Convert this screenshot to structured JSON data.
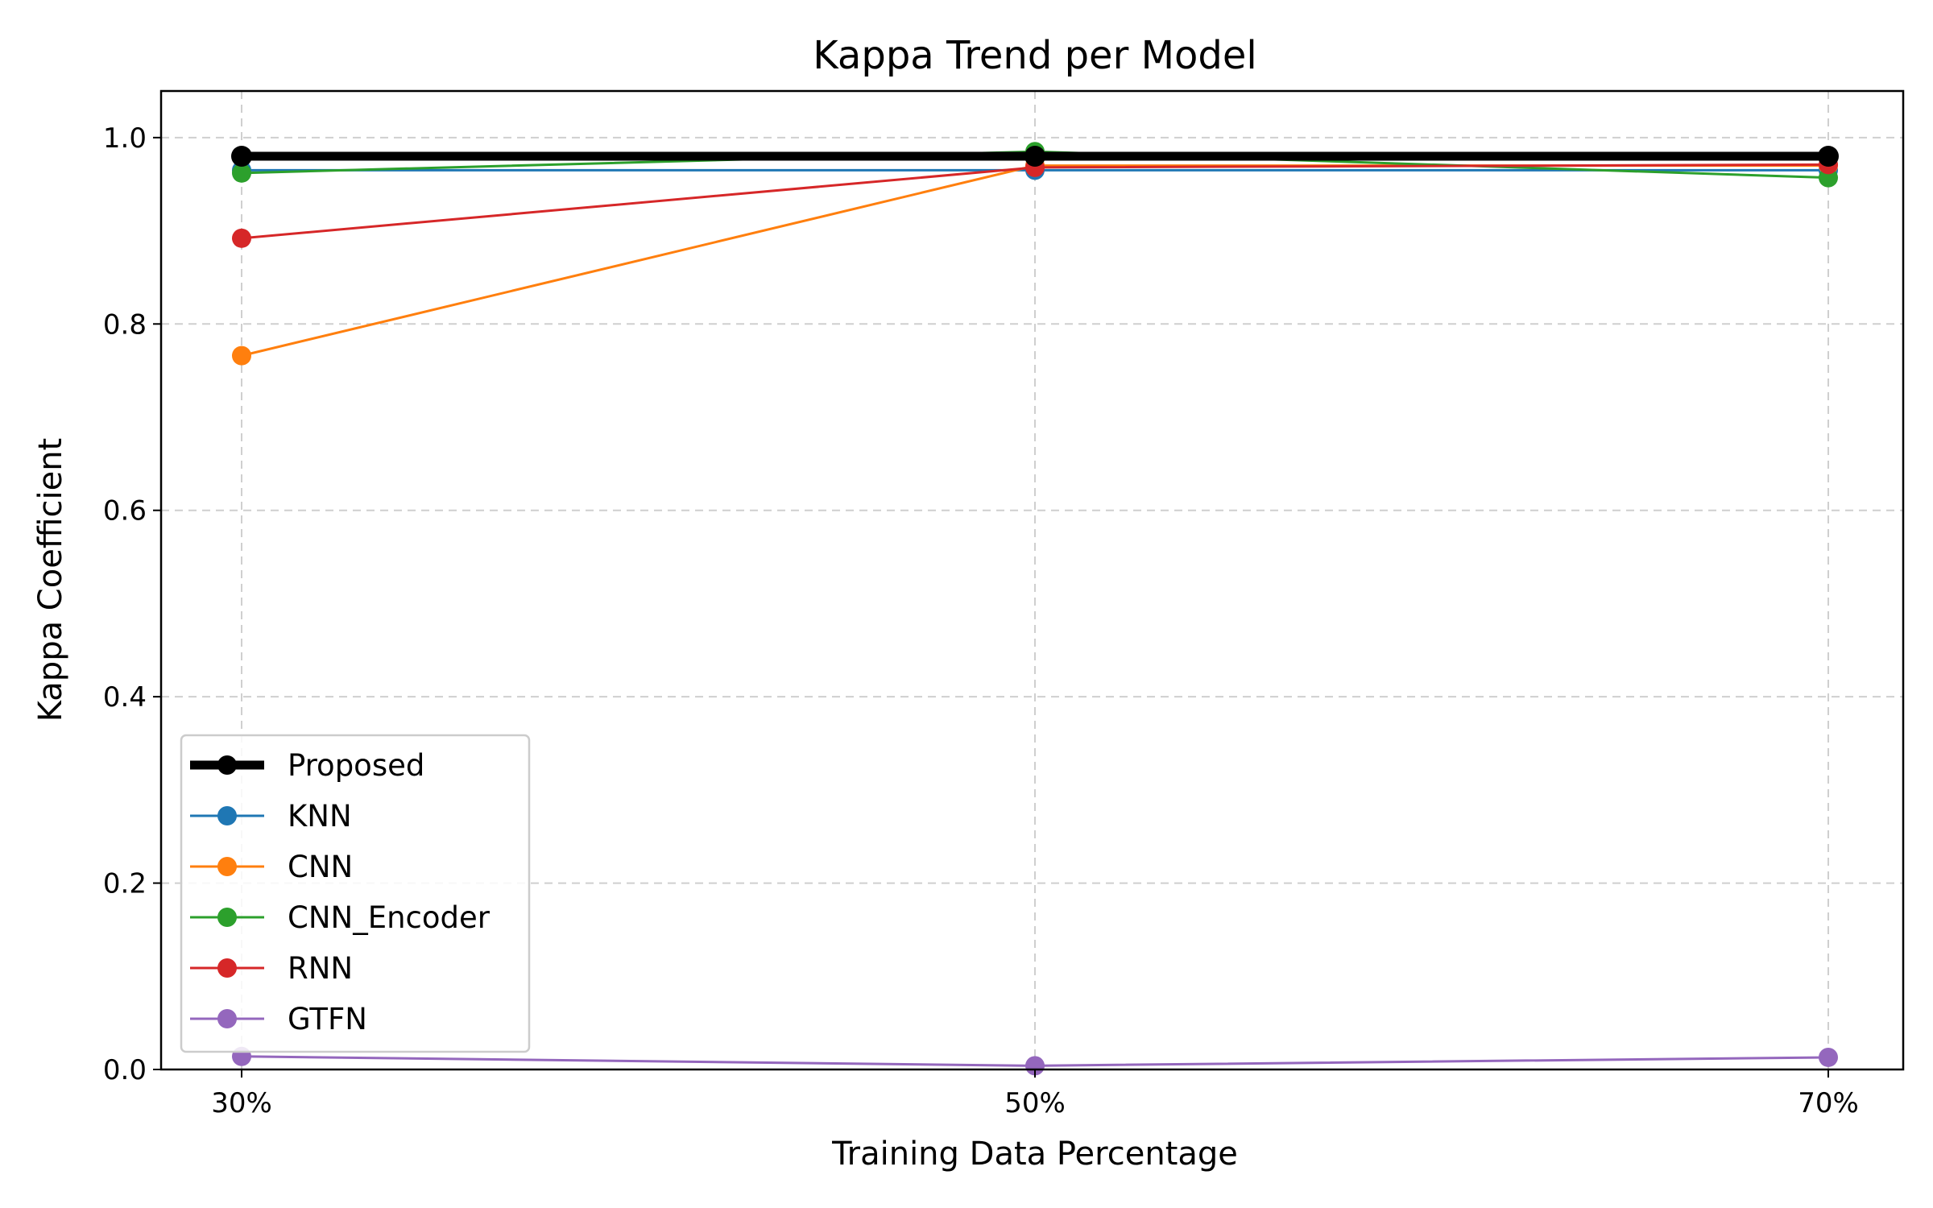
{
  "chart_data": {
    "type": "line",
    "title": "Kappa Trend per Model",
    "xlabel": "Training Data Percentage",
    "ylabel": "Kappa Coefficient",
    "categories": [
      "30%",
      "50%",
      "70%"
    ],
    "ylim": [
      0.0,
      1.05
    ],
    "yticks": [
      "0.0",
      "0.2",
      "0.4",
      "0.6",
      "0.8",
      "1.0"
    ],
    "grid": true,
    "legend_position": "lower-left",
    "series": [
      {
        "name": "Proposed",
        "values": [
          0.98,
          0.98,
          0.98
        ],
        "color": "#000000",
        "emphasis": true
      },
      {
        "name": "KNN",
        "values": [
          0.965,
          0.965,
          0.965
        ],
        "color": "#1f77b4"
      },
      {
        "name": "CNN",
        "values": [
          0.766,
          0.97,
          0.97
        ],
        "color": "#ff7f0e"
      },
      {
        "name": "CNN_Encoder",
        "values": [
          0.962,
          0.985,
          0.957
        ],
        "color": "#2ca02c"
      },
      {
        "name": "RNN",
        "values": [
          0.892,
          0.968,
          0.971
        ],
        "color": "#d62728"
      },
      {
        "name": "GTFN",
        "values": [
          0.014,
          0.004,
          0.013
        ],
        "color": "#9467bd"
      }
    ]
  }
}
